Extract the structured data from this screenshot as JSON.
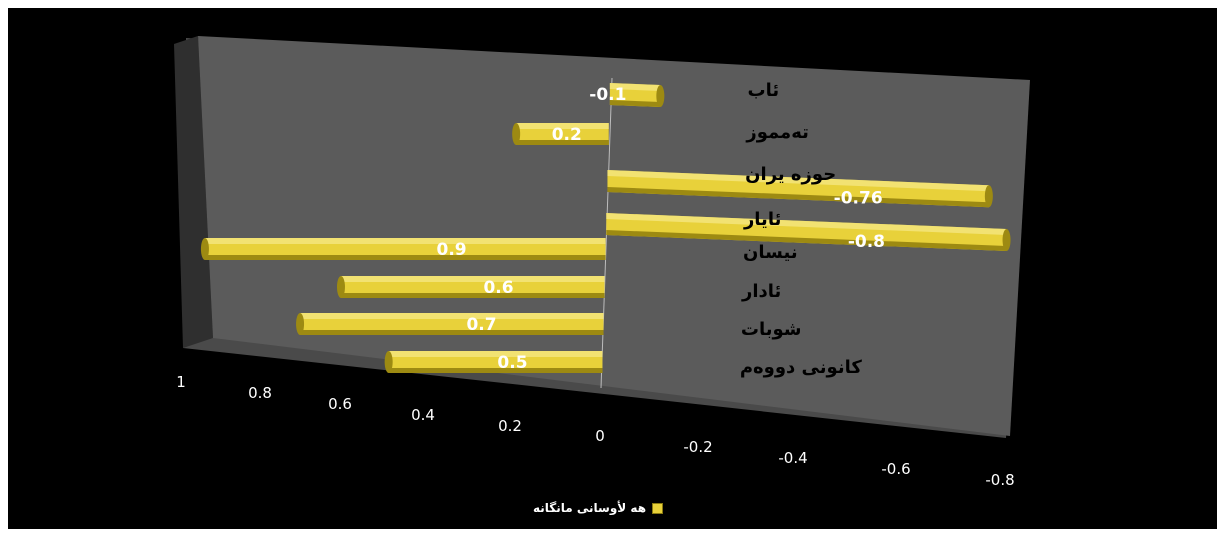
{
  "colors": {
    "background": "#000000",
    "plot_wall": "#5b5b5b",
    "bar_fill": "#e8d13a",
    "bar_shade": "#9d8a12",
    "bar_highlight": "#f6ea8a"
  },
  "legend": {
    "label": "هه لأوسانی مانگانه"
  },
  "chart_data": {
    "type": "bar",
    "orientation": "horizontal",
    "x_axis_reversed": true,
    "categories": [
      "ئاب",
      "تەمموز",
      "حوزه یران",
      "ئایار",
      "نیسان",
      "ئادار",
      "شوبات",
      "کانونی دووەم"
    ],
    "series": [
      {
        "name": "هه لأوسانی مانگانه",
        "values": [
          -0.1,
          0.2,
          -0.76,
          -0.8,
          0.9,
          0.6,
          0.7,
          0.5
        ]
      }
    ],
    "data_labels": [
      "-0.1",
      "0.2",
      "-0.76",
      "-0.8",
      "0.9",
      "0.6",
      "0.7",
      "0.5"
    ],
    "xticks": [
      1,
      0.8,
      0.6,
      0.4,
      0.2,
      0,
      -0.2,
      -0.4,
      -0.6,
      -0.8
    ],
    "tick_labels": [
      "1",
      "0.8",
      "0.6",
      "0.4",
      "0.2",
      "0",
      "-0.2",
      "-0.4",
      "-0.6",
      "-0.8"
    ],
    "xlim": [
      1,
      -0.8
    ],
    "legend_position": "bottom",
    "grid": false
  }
}
